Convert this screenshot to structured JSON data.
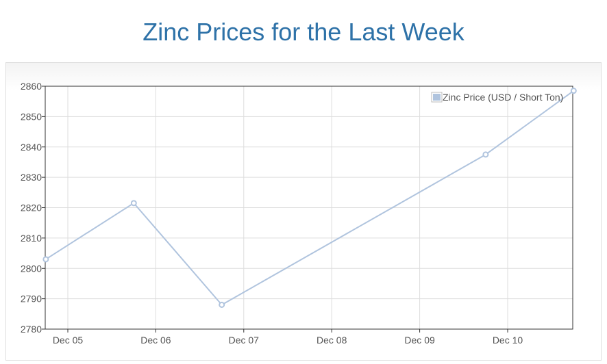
{
  "page": {
    "title": "Zinc Prices for the Last Week"
  },
  "chart_data": {
    "type": "line",
    "title": "Zinc Prices for the Last Week",
    "xlabel": "",
    "ylabel": "",
    "x_ticks": [
      "Dec 05",
      "Dec 06",
      "Dec 07",
      "Dec 08",
      "Dec 09",
      "Dec 10"
    ],
    "ylim": [
      2780,
      2860
    ],
    "y_ticks": [
      "2780",
      "2790",
      "2800",
      "2810",
      "2820",
      "2830",
      "2840",
      "2850",
      "2860"
    ],
    "series": [
      {
        "name": "Zinc Price (USD / Short Ton)",
        "color": "#b0c4de",
        "points": [
          {
            "x": "2023-12-04 18:00",
            "y": 2803
          },
          {
            "x": "2023-12-05 18:00",
            "y": 2821.5
          },
          {
            "x": "2023-12-06 18:00",
            "y": 2788
          },
          {
            "x": "2023-12-09 18:00",
            "y": 2837.5
          },
          {
            "x": "2023-12-10 18:00",
            "y": 2858.5
          }
        ]
      }
    ],
    "grid": true,
    "legend": "top-right"
  }
}
